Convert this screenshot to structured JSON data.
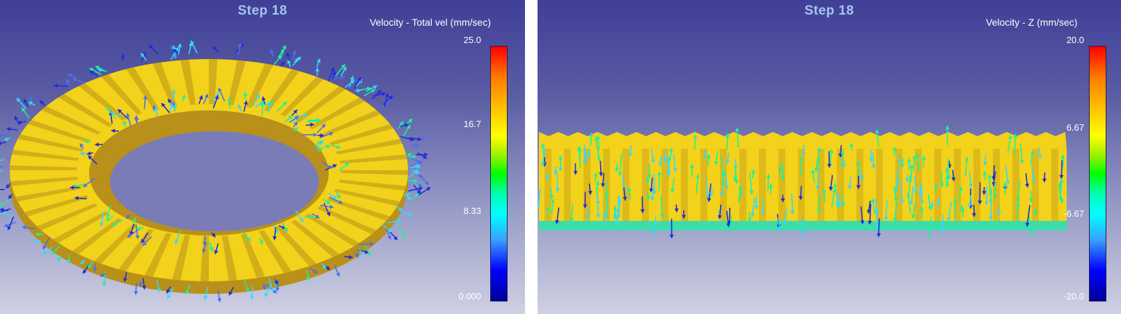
{
  "panels": [
    {
      "title": "Step    18",
      "legend_title": "Velocity - Total vel (mm/sec)",
      "scale_ticks": [
        "25.0",
        "16.7",
        "8.33",
        "0.000"
      ]
    },
    {
      "title": "Step    18",
      "legend_title": "Velocity - Z (mm/sec)",
      "scale_ticks": [
        "20.0",
        "6.67",
        "-6.67",
        "-20.0"
      ]
    }
  ],
  "colors": {
    "gear": "#f2d21a",
    "gear_shadow": "#b8901a",
    "arrow_cyan": "#35d8ff",
    "arrow_green": "#1cf0a0",
    "arrow_blue": "#1f2bd8",
    "background_top": "#3f3f97",
    "background_bottom": "#cfd0e3"
  }
}
